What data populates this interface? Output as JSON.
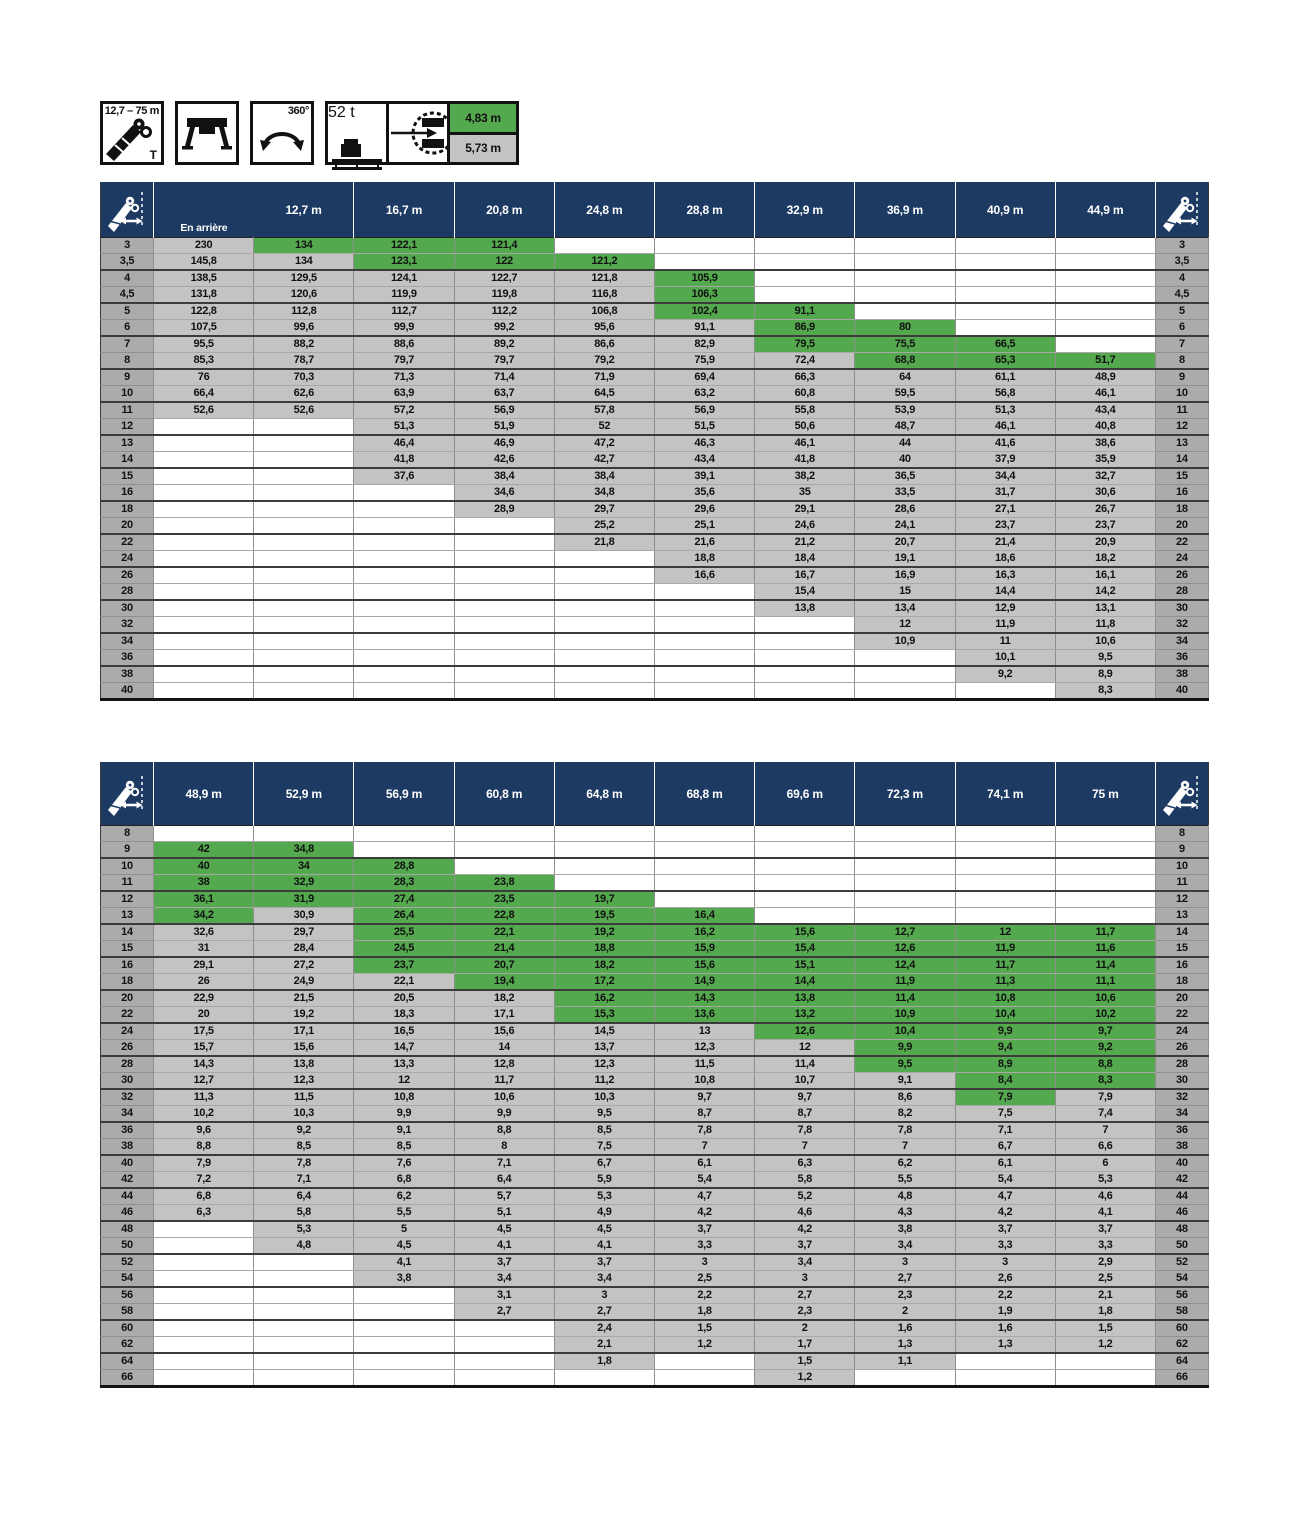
{
  "legend": {
    "boom_range": "12,7 – 75 m",
    "boom_unit": "T",
    "slew_range": "360°",
    "counterweight": "52 t",
    "tail_radius_primary": "4,83 m",
    "tail_radius_secondary": "5,73 m"
  },
  "colors": {
    "green": "#54a84e",
    "header_navy": "#1d3a63",
    "cell_gray": "#c3c3c3",
    "label_gray": "#ababab"
  },
  "table1": {
    "first_span_label": "12,7 m",
    "first_sub_label": "En arrière",
    "columns": [
      "16,7 m",
      "20,8 m",
      "24,8 m",
      "28,8 m",
      "32,9 m",
      "36,9 m",
      "40,9 m",
      "44,9 m"
    ],
    "rows": [
      {
        "label": "3",
        "v": [
          "230",
          "134",
          "122,1",
          "121,4",
          "",
          "",
          "",
          "",
          "",
          ""
        ],
        "g": [
          1,
          2,
          3
        ]
      },
      {
        "label": "3,5",
        "v": [
          "145,8",
          "134",
          "123,1",
          "122",
          "121,2",
          "",
          "",
          "",
          "",
          ""
        ],
        "g": [
          2,
          3,
          4
        ]
      },
      {
        "label": "4",
        "v": [
          "138,5",
          "129,5",
          "124,1",
          "122,7",
          "121,8",
          "105,9",
          "",
          "",
          "",
          ""
        ],
        "g": [
          5
        ]
      },
      {
        "label": "4,5",
        "v": [
          "131,8",
          "120,6",
          "119,9",
          "119,8",
          "116,8",
          "106,3",
          "",
          "",
          "",
          ""
        ],
        "g": [
          5
        ]
      },
      {
        "label": "5",
        "v": [
          "122,8",
          "112,8",
          "112,7",
          "112,2",
          "106,8",
          "102,4",
          "91,1",
          "",
          "",
          ""
        ],
        "g": [
          5,
          6
        ]
      },
      {
        "label": "6",
        "v": [
          "107,5",
          "99,6",
          "99,9",
          "99,2",
          "95,6",
          "91,1",
          "86,9",
          "80",
          "",
          ""
        ],
        "g": [
          6,
          7
        ]
      },
      {
        "label": "7",
        "v": [
          "95,5",
          "88,2",
          "88,6",
          "89,2",
          "86,6",
          "82,9",
          "79,5",
          "75,5",
          "66,5",
          ""
        ],
        "g": [
          6,
          7,
          8
        ]
      },
      {
        "label": "8",
        "v": [
          "85,3",
          "78,7",
          "79,7",
          "79,7",
          "79,2",
          "75,9",
          "72,4",
          "68,8",
          "65,3",
          "51,7"
        ],
        "g": [
          7,
          8,
          9
        ]
      },
      {
        "label": "9",
        "v": [
          "76",
          "70,3",
          "71,3",
          "71,4",
          "71,9",
          "69,4",
          "66,3",
          "64",
          "61,1",
          "48,9"
        ],
        "g": []
      },
      {
        "label": "10",
        "v": [
          "66,4",
          "62,6",
          "63,9",
          "63,7",
          "64,5",
          "63,2",
          "60,8",
          "59,5",
          "56,8",
          "46,1"
        ],
        "g": []
      },
      {
        "label": "11",
        "v": [
          "52,6",
          "52,6",
          "57,2",
          "56,9",
          "57,8",
          "56,9",
          "55,8",
          "53,9",
          "51,3",
          "43,4"
        ],
        "g": []
      },
      {
        "label": "12",
        "v": [
          "",
          "",
          "51,3",
          "51,9",
          "52",
          "51,5",
          "50,6",
          "48,7",
          "46,1",
          "40,8"
        ],
        "g": []
      },
      {
        "label": "13",
        "v": [
          "",
          "",
          "46,4",
          "46,9",
          "47,2",
          "46,3",
          "46,1",
          "44",
          "41,6",
          "38,6"
        ],
        "g": []
      },
      {
        "label": "14",
        "v": [
          "",
          "",
          "41,8",
          "42,6",
          "42,7",
          "43,4",
          "41,8",
          "40",
          "37,9",
          "35,9"
        ],
        "g": []
      },
      {
        "label": "15",
        "v": [
          "",
          "",
          "37,6",
          "38,4",
          "38,4",
          "39,1",
          "38,2",
          "36,5",
          "34,4",
          "32,7"
        ],
        "g": []
      },
      {
        "label": "16",
        "v": [
          "",
          "",
          "",
          "34,6",
          "34,8",
          "35,6",
          "35",
          "33,5",
          "31,7",
          "30,6"
        ],
        "g": []
      },
      {
        "label": "18",
        "v": [
          "",
          "",
          "",
          "28,9",
          "29,7",
          "29,6",
          "29,1",
          "28,6",
          "27,1",
          "26,7"
        ],
        "g": []
      },
      {
        "label": "20",
        "v": [
          "",
          "",
          "",
          "",
          "25,2",
          "25,1",
          "24,6",
          "24,1",
          "23,7",
          "23,7"
        ],
        "g": []
      },
      {
        "label": "22",
        "v": [
          "",
          "",
          "",
          "",
          "21,8",
          "21,6",
          "21,2",
          "20,7",
          "21,4",
          "20,9"
        ],
        "g": []
      },
      {
        "label": "24",
        "v": [
          "",
          "",
          "",
          "",
          "",
          "18,8",
          "18,4",
          "19,1",
          "18,6",
          "18,2"
        ],
        "g": []
      },
      {
        "label": "26",
        "v": [
          "",
          "",
          "",
          "",
          "",
          "16,6",
          "16,7",
          "16,9",
          "16,3",
          "16,1"
        ],
        "g": []
      },
      {
        "label": "28",
        "v": [
          "",
          "",
          "",
          "",
          "",
          "",
          "15,4",
          "15",
          "14,4",
          "14,2"
        ],
        "g": []
      },
      {
        "label": "30",
        "v": [
          "",
          "",
          "",
          "",
          "",
          "",
          "13,8",
          "13,4",
          "12,9",
          "13,1"
        ],
        "g": []
      },
      {
        "label": "32",
        "v": [
          "",
          "",
          "",
          "",
          "",
          "",
          "",
          "12",
          "11,9",
          "11,8"
        ],
        "g": []
      },
      {
        "label": "34",
        "v": [
          "",
          "",
          "",
          "",
          "",
          "",
          "",
          "10,9",
          "11",
          "10,6"
        ],
        "g": []
      },
      {
        "label": "36",
        "v": [
          "",
          "",
          "",
          "",
          "",
          "",
          "",
          "",
          "10,1",
          "9,5"
        ],
        "g": []
      },
      {
        "label": "38",
        "v": [
          "",
          "",
          "",
          "",
          "",
          "",
          "",
          "",
          "9,2",
          "8,9"
        ],
        "g": []
      },
      {
        "label": "40",
        "v": [
          "",
          "",
          "",
          "",
          "",
          "",
          "",
          "",
          "",
          "8,3"
        ],
        "g": []
      }
    ]
  },
  "table2": {
    "columns": [
      "48,9 m",
      "52,9 m",
      "56,9 m",
      "60,8 m",
      "64,8 m",
      "68,8 m",
      "69,6 m",
      "72,3 m",
      "74,1 m",
      "75 m"
    ],
    "rows": [
      {
        "label": "8",
        "v": [
          "",
          "",
          "",
          "",
          "",
          "",
          "",
          "",
          "",
          ""
        ],
        "g": []
      },
      {
        "label": "9",
        "v": [
          "42",
          "34,8",
          "",
          "",
          "",
          "",
          "",
          "",
          "",
          ""
        ],
        "g": [
          0,
          1
        ]
      },
      {
        "label": "10",
        "v": [
          "40",
          "34",
          "28,8",
          "",
          "",
          "",
          "",
          "",
          "",
          ""
        ],
        "g": [
          0,
          1,
          2
        ]
      },
      {
        "label": "11",
        "v": [
          "38",
          "32,9",
          "28,3",
          "23,8",
          "",
          "",
          "",
          "",
          "",
          ""
        ],
        "g": [
          0,
          1,
          2,
          3
        ]
      },
      {
        "label": "12",
        "v": [
          "36,1",
          "31,9",
          "27,4",
          "23,5",
          "19,7",
          "",
          "",
          "",
          "",
          ""
        ],
        "g": [
          0,
          1,
          2,
          3,
          4
        ]
      },
      {
        "label": "13",
        "v": [
          "34,2",
          "30,9",
          "26,4",
          "22,8",
          "19,5",
          "16,4",
          "",
          "",
          "",
          ""
        ],
        "g": [
          0,
          2,
          3,
          4,
          5
        ]
      },
      {
        "label": "14",
        "v": [
          "32,6",
          "29,7",
          "25,5",
          "22,1",
          "19,2",
          "16,2",
          "15,6",
          "12,7",
          "12",
          "11,7"
        ],
        "g": [
          2,
          3,
          4,
          5,
          6,
          7,
          8,
          9
        ]
      },
      {
        "label": "15",
        "v": [
          "31",
          "28,4",
          "24,5",
          "21,4",
          "18,8",
          "15,9",
          "15,4",
          "12,6",
          "11,9",
          "11,6"
        ],
        "g": [
          2,
          3,
          4,
          5,
          6,
          7,
          8,
          9
        ]
      },
      {
        "label": "16",
        "v": [
          "29,1",
          "27,2",
          "23,7",
          "20,7",
          "18,2",
          "15,6",
          "15,1",
          "12,4",
          "11,7",
          "11,4"
        ],
        "g": [
          2,
          3,
          4,
          5,
          6,
          7,
          8,
          9
        ]
      },
      {
        "label": "18",
        "v": [
          "26",
          "24,9",
          "22,1",
          "19,4",
          "17,2",
          "14,9",
          "14,4",
          "11,9",
          "11,3",
          "11,1"
        ],
        "g": [
          3,
          4,
          5,
          6,
          7,
          8,
          9
        ]
      },
      {
        "label": "20",
        "v": [
          "22,9",
          "21,5",
          "20,5",
          "18,2",
          "16,2",
          "14,3",
          "13,8",
          "11,4",
          "10,8",
          "10,6"
        ],
        "g": [
          4,
          5,
          6,
          7,
          8,
          9
        ]
      },
      {
        "label": "22",
        "v": [
          "20",
          "19,2",
          "18,3",
          "17,1",
          "15,3",
          "13,6",
          "13,2",
          "10,9",
          "10,4",
          "10,2"
        ],
        "g": [
          4,
          5,
          6,
          7,
          8,
          9
        ]
      },
      {
        "label": "24",
        "v": [
          "17,5",
          "17,1",
          "16,5",
          "15,6",
          "14,5",
          "13",
          "12,6",
          "10,4",
          "9,9",
          "9,7"
        ],
        "g": [
          6,
          7,
          8,
          9
        ]
      },
      {
        "label": "26",
        "v": [
          "15,7",
          "15,6",
          "14,7",
          "14",
          "13,7",
          "12,3",
          "12",
          "9,9",
          "9,4",
          "9,2"
        ],
        "g": [
          7,
          8,
          9
        ]
      },
      {
        "label": "28",
        "v": [
          "14,3",
          "13,8",
          "13,3",
          "12,8",
          "12,3",
          "11,5",
          "11,4",
          "9,5",
          "8,9",
          "8,8"
        ],
        "g": [
          7,
          8,
          9
        ]
      },
      {
        "label": "30",
        "v": [
          "12,7",
          "12,3",
          "12",
          "11,7",
          "11,2",
          "10,8",
          "10,7",
          "9,1",
          "8,4",
          "8,3"
        ],
        "g": [
          8,
          9
        ]
      },
      {
        "label": "32",
        "v": [
          "11,3",
          "11,5",
          "10,8",
          "10,6",
          "10,3",
          "9,7",
          "9,7",
          "8,6",
          "7,9",
          "7,9"
        ],
        "g": [
          8
        ]
      },
      {
        "label": "34",
        "v": [
          "10,2",
          "10,3",
          "9,9",
          "9,9",
          "9,5",
          "8,7",
          "8,7",
          "8,2",
          "7,5",
          "7,4"
        ],
        "g": []
      },
      {
        "label": "36",
        "v": [
          "9,6",
          "9,2",
          "9,1",
          "8,8",
          "8,5",
          "7,8",
          "7,8",
          "7,8",
          "7,1",
          "7"
        ],
        "g": []
      },
      {
        "label": "38",
        "v": [
          "8,8",
          "8,5",
          "8,5",
          "8",
          "7,5",
          "7",
          "7",
          "7",
          "6,7",
          "6,6"
        ],
        "g": []
      },
      {
        "label": "40",
        "v": [
          "7,9",
          "7,8",
          "7,6",
          "7,1",
          "6,7",
          "6,1",
          "6,3",
          "6,2",
          "6,1",
          "6"
        ],
        "g": []
      },
      {
        "label": "42",
        "v": [
          "7,2",
          "7,1",
          "6,8",
          "6,4",
          "5,9",
          "5,4",
          "5,8",
          "5,5",
          "5,4",
          "5,3"
        ],
        "g": []
      },
      {
        "label": "44",
        "v": [
          "6,8",
          "6,4",
          "6,2",
          "5,7",
          "5,3",
          "4,7",
          "5,2",
          "4,8",
          "4,7",
          "4,6"
        ],
        "g": []
      },
      {
        "label": "46",
        "v": [
          "6,3",
          "5,8",
          "5,5",
          "5,1",
          "4,9",
          "4,2",
          "4,6",
          "4,3",
          "4,2",
          "4,1"
        ],
        "g": []
      },
      {
        "label": "48",
        "v": [
          "",
          "5,3",
          "5",
          "4,5",
          "4,5",
          "3,7",
          "4,2",
          "3,8",
          "3,7",
          "3,7"
        ],
        "g": []
      },
      {
        "label": "50",
        "v": [
          "",
          "4,8",
          "4,5",
          "4,1",
          "4,1",
          "3,3",
          "3,7",
          "3,4",
          "3,3",
          "3,3"
        ],
        "g": []
      },
      {
        "label": "52",
        "v": [
          "",
          "",
          "4,1",
          "3,7",
          "3,7",
          "3",
          "3,4",
          "3",
          "3",
          "2,9"
        ],
        "g": []
      },
      {
        "label": "54",
        "v": [
          "",
          "",
          "3,8",
          "3,4",
          "3,4",
          "2,5",
          "3",
          "2,7",
          "2,6",
          "2,5"
        ],
        "g": []
      },
      {
        "label": "56",
        "v": [
          "",
          "",
          "",
          "3,1",
          "3",
          "2,2",
          "2,7",
          "2,3",
          "2,2",
          "2,1"
        ],
        "g": []
      },
      {
        "label": "58",
        "v": [
          "",
          "",
          "",
          "2,7",
          "2,7",
          "1,8",
          "2,3",
          "2",
          "1,9",
          "1,8"
        ],
        "g": []
      },
      {
        "label": "60",
        "v": [
          "",
          "",
          "",
          "",
          "2,4",
          "1,5",
          "2",
          "1,6",
          "1,6",
          "1,5"
        ],
        "g": []
      },
      {
        "label": "62",
        "v": [
          "",
          "",
          "",
          "",
          "2,1",
          "1,2",
          "1,7",
          "1,3",
          "1,3",
          "1,2"
        ],
        "g": []
      },
      {
        "label": "64",
        "v": [
          "",
          "",
          "",
          "",
          "1,8",
          "",
          "1,5",
          "1,1",
          "",
          ""
        ],
        "g": []
      },
      {
        "label": "66",
        "v": [
          "",
          "",
          "",
          "",
          "",
          "",
          "1,2",
          "",
          "",
          ""
        ],
        "g": []
      }
    ]
  }
}
